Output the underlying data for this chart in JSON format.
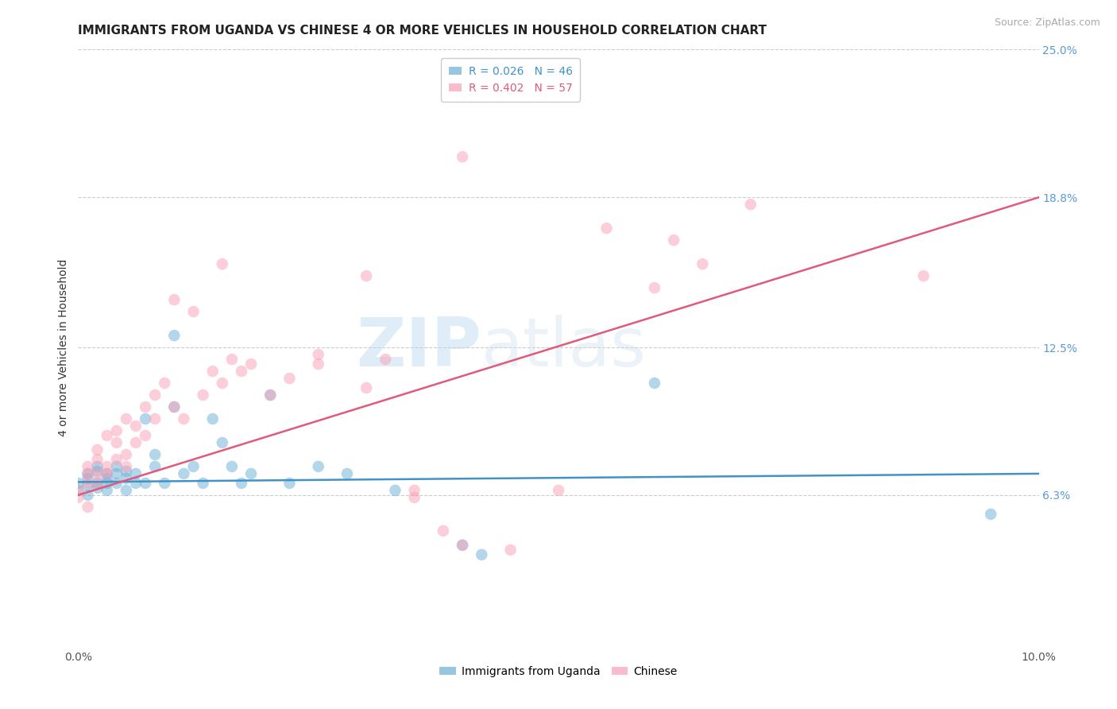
{
  "title": "IMMIGRANTS FROM UGANDA VS CHINESE 4 OR MORE VEHICLES IN HOUSEHOLD CORRELATION CHART",
  "source": "Source: ZipAtlas.com",
  "ylabel": "4 or more Vehicles in Household",
  "xlim": [
    0.0,
    0.1
  ],
  "ylim": [
    0.0,
    0.25
  ],
  "y_ticks_right": [
    0.063,
    0.125,
    0.188,
    0.25
  ],
  "y_tick_labels_right": [
    "6.3%",
    "12.5%",
    "18.8%",
    "25.0%"
  ],
  "watermark": "ZIPatlas",
  "legend_entries": [
    {
      "label": "R = 0.026   N = 46",
      "color": "#6baed6"
    },
    {
      "label": "R = 0.402   N = 57",
      "color": "#fa9fb5"
    }
  ],
  "legend_labels": [
    "Immigrants from Uganda",
    "Chinese"
  ],
  "uganda_scatter_x": [
    0.0,
    0.0,
    0.001,
    0.001,
    0.001,
    0.001,
    0.002,
    0.002,
    0.002,
    0.002,
    0.003,
    0.003,
    0.003,
    0.003,
    0.004,
    0.004,
    0.004,
    0.005,
    0.005,
    0.005,
    0.006,
    0.006,
    0.007,
    0.007,
    0.008,
    0.008,
    0.009,
    0.01,
    0.01,
    0.011,
    0.012,
    0.013,
    0.014,
    0.015,
    0.016,
    0.017,
    0.018,
    0.02,
    0.022,
    0.025,
    0.028,
    0.033,
    0.04,
    0.042,
    0.06,
    0.095
  ],
  "uganda_scatter_y": [
    0.065,
    0.068,
    0.072,
    0.067,
    0.07,
    0.063,
    0.075,
    0.068,
    0.073,
    0.066,
    0.07,
    0.072,
    0.065,
    0.068,
    0.072,
    0.068,
    0.075,
    0.07,
    0.065,
    0.073,
    0.068,
    0.072,
    0.095,
    0.068,
    0.075,
    0.08,
    0.068,
    0.1,
    0.13,
    0.072,
    0.075,
    0.068,
    0.095,
    0.085,
    0.075,
    0.068,
    0.072,
    0.105,
    0.068,
    0.075,
    0.072,
    0.065,
    0.042,
    0.038,
    0.11,
    0.055
  ],
  "chinese_scatter_x": [
    0.0,
    0.0,
    0.001,
    0.001,
    0.001,
    0.001,
    0.002,
    0.002,
    0.002,
    0.002,
    0.003,
    0.003,
    0.003,
    0.004,
    0.004,
    0.004,
    0.005,
    0.005,
    0.005,
    0.006,
    0.006,
    0.007,
    0.007,
    0.008,
    0.008,
    0.009,
    0.01,
    0.011,
    0.012,
    0.013,
    0.014,
    0.015,
    0.016,
    0.017,
    0.018,
    0.02,
    0.022,
    0.025,
    0.03,
    0.032,
    0.035,
    0.038,
    0.04,
    0.045,
    0.05,
    0.055,
    0.06,
    0.062,
    0.065,
    0.07,
    0.03,
    0.025,
    0.035,
    0.04,
    0.015,
    0.01,
    0.088
  ],
  "chinese_scatter_y": [
    0.065,
    0.062,
    0.072,
    0.068,
    0.075,
    0.058,
    0.078,
    0.072,
    0.068,
    0.082,
    0.075,
    0.088,
    0.072,
    0.085,
    0.078,
    0.09,
    0.08,
    0.095,
    0.075,
    0.085,
    0.092,
    0.1,
    0.088,
    0.105,
    0.095,
    0.11,
    0.1,
    0.095,
    0.14,
    0.105,
    0.115,
    0.11,
    0.12,
    0.115,
    0.118,
    0.105,
    0.112,
    0.122,
    0.108,
    0.12,
    0.062,
    0.048,
    0.042,
    0.04,
    0.065,
    0.175,
    0.15,
    0.17,
    0.16,
    0.185,
    0.155,
    0.118,
    0.065,
    0.205,
    0.16,
    0.145,
    0.155
  ],
  "uganda_line_x": [
    0.0,
    0.1
  ],
  "uganda_line_y": [
    0.0685,
    0.072
  ],
  "chinese_line_x": [
    0.0,
    0.1
  ],
  "chinese_line_y": [
    0.063,
    0.188
  ],
  "scatter_color_uganda": "#6baed6",
  "scatter_color_chinese": "#fa9fb5",
  "line_color_uganda": "#4292c6",
  "line_color_chinese": "#e05a7a",
  "background_color": "#ffffff",
  "grid_color": "#cccccc",
  "title_fontsize": 11,
  "axis_label_fontsize": 10,
  "tick_label_fontsize": 10,
  "legend_fontsize": 10
}
